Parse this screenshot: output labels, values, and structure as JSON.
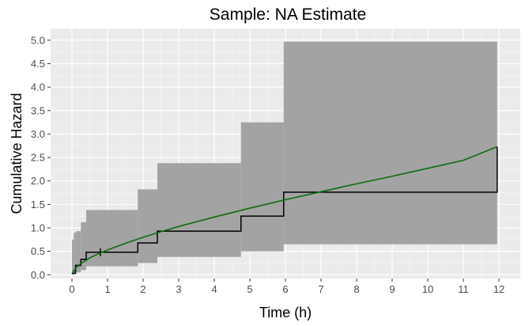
{
  "chart_data": {
    "type": "line",
    "title": "Sample: NA Estimate",
    "xlabel": "Time (h)",
    "ylabel": "Cumulative Hazard",
    "xlim": [
      -0.6,
      12.6
    ],
    "ylim": [
      -0.08,
      5.25
    ],
    "x_ticks": [
      "0",
      "1",
      "2",
      "3",
      "4",
      "5",
      "6",
      "7",
      "8",
      "9",
      "10",
      "11",
      "12"
    ],
    "y_ticks": [
      "0.0",
      "0.5",
      "1.0",
      "1.5",
      "2.0",
      "2.5",
      "3.0",
      "3.5",
      "4.0",
      "4.5",
      "5.0"
    ],
    "grid": true,
    "legend": "none",
    "colors": {
      "panel_bg": "#ebebeb",
      "grid_major": "#ffffff",
      "ribbon": "#a3a3a3",
      "step_line": "#000000",
      "fit_curve": "#0a6e0a"
    },
    "series": [
      {
        "kind": "step",
        "x": [
          0,
          0.1,
          0.25,
          0.4,
          1.85,
          2.4,
          4.75,
          5.95,
          11.95
        ],
        "y": [
          0.03,
          0.2,
          0.33,
          0.48,
          0.68,
          0.93,
          1.25,
          1.76,
          1.76
        ],
        "end_y": 2.73,
        "censor_marks_x": [
          0.8
        ]
      },
      {
        "kind": "confidence_band",
        "x": [
          0,
          0.05,
          0.12,
          0.25,
          0.4,
          1.85,
          2.4,
          4.75,
          5.95,
          11.95
        ],
        "lower": [
          0,
          0.02,
          0.05,
          0.1,
          0.18,
          0.25,
          0.38,
          0.5,
          0.65,
          0.65
        ],
        "upper": [
          0.75,
          0.9,
          0.93,
          1.12,
          1.38,
          1.82,
          2.38,
          3.25,
          4.97,
          4.97
        ]
      },
      {
        "kind": "curve",
        "x": [
          0,
          0.1,
          0.25,
          0.5,
          0.75,
          1,
          1.5,
          2,
          2.5,
          3,
          4,
          5,
          6,
          7,
          8,
          9,
          10,
          11,
          11.95
        ],
        "y": [
          0.02,
          0.14,
          0.24,
          0.36,
          0.45,
          0.53,
          0.67,
          0.8,
          0.92,
          1.03,
          1.23,
          1.42,
          1.6,
          1.77,
          1.94,
          2.1,
          2.27,
          2.44,
          2.73
        ]
      }
    ]
  }
}
